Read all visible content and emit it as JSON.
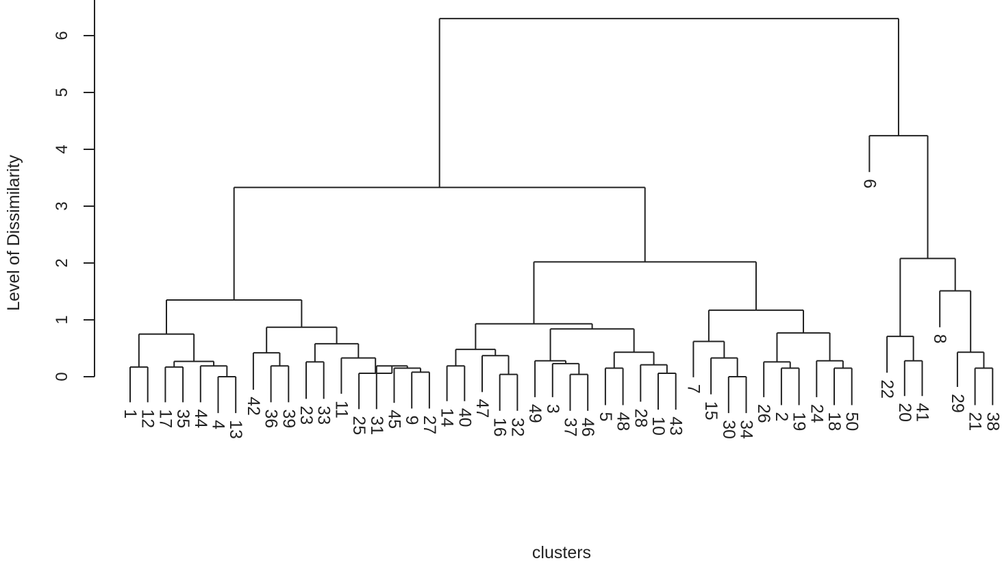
{
  "chart_data": {
    "type": "dendrogram",
    "title": "",
    "xlabel": "clusters",
    "ylabel": "Level of Dissimilarity",
    "ylim": [
      0,
      6.3
    ],
    "yticks": [
      0,
      1,
      2,
      3,
      4,
      5,
      6
    ],
    "grid": false,
    "leaf_order": [
      1,
      12,
      17,
      35,
      44,
      4,
      13,
      42,
      36,
      39,
      23,
      33,
      11,
      25,
      31,
      45,
      9,
      27,
      14,
      40,
      47,
      16,
      32,
      49,
      3,
      37,
      46,
      5,
      48,
      28,
      10,
      43,
      7,
      15,
      30,
      34,
      26,
      2,
      19,
      24,
      18,
      50,
      6,
      22,
      20,
      41,
      8,
      29,
      21,
      38
    ],
    "leaf_heights": {
      "1": -0.45,
      "12": -0.45,
      "17": -0.45,
      "35": -0.45,
      "44": -0.45,
      "4": -0.64,
      "13": -0.64,
      "42": -0.23,
      "36": -0.45,
      "39": -0.45,
      "23": -0.39,
      "33": -0.39,
      "11": -0.3,
      "25": -0.57,
      "31": -0.57,
      "45": -0.46,
      "9": -0.56,
      "27": -0.56,
      "14": -0.43,
      "40": -0.43,
      "47": -0.27,
      "16": -0.6,
      "32": -0.6,
      "49": -0.36,
      "3": -0.36,
      "37": -0.6,
      "46": -0.6,
      "5": -0.5,
      "48": -0.5,
      "28": -0.44,
      "10": -0.58,
      "43": -0.58,
      "7": -0.01,
      "15": -0.31,
      "30": -0.64,
      "34": -0.64,
      "26": -0.36,
      "2": -0.5,
      "19": -0.5,
      "24": -0.36,
      "18": -0.5,
      "50": -0.5,
      "6": 3.6,
      "22": 0.07,
      "20": -0.34,
      "41": -0.34,
      "8": 0.87,
      "29": -0.18,
      "21": -0.5,
      "38": -0.5
    },
    "merges": [
      [
        1,
        12,
        0.17
      ],
      [
        4,
        13,
        0.0
      ],
      [
        17,
        35,
        0.17
      ],
      [
        44,
        "m2",
        0.19
      ],
      [
        "m3",
        "m4",
        0.27
      ],
      [
        "m1",
        "m5",
        0.75
      ],
      [
        36,
        39,
        0.19
      ],
      [
        42,
        "m7",
        0.42
      ],
      [
        23,
        33,
        0.26
      ],
      [
        9,
        27,
        0.08
      ],
      [
        45,
        "m10",
        0.15
      ],
      [
        31,
        "m11",
        0.19
      ],
      [
        25,
        "m12",
        0.06
      ],
      [
        11,
        "m13",
        0.33
      ],
      [
        "m9",
        "m14",
        0.58
      ],
      [
        "m8",
        "m15",
        0.87
      ],
      [
        "m6",
        "m16",
        1.35
      ],
      [
        14,
        40,
        0.19
      ],
      [
        16,
        32,
        0.04
      ],
      [
        47,
        "m19",
        0.37
      ],
      [
        "m18",
        "m20",
        0.48
      ],
      [
        37,
        46,
        0.04
      ],
      [
        3,
        "m22",
        0.23
      ],
      [
        49,
        "m23",
        0.28
      ],
      [
        5,
        48,
        0.15
      ],
      [
        10,
        43,
        0.06
      ],
      [
        28,
        "m26",
        0.21
      ],
      [
        "m25",
        "m27",
        0.43
      ],
      [
        "m24",
        "m28",
        0.84
      ],
      [
        "m21",
        "m29",
        0.93
      ],
      [
        30,
        34,
        0.0
      ],
      [
        15,
        "m31",
        0.33
      ],
      [
        7,
        "m32",
        0.62
      ],
      [
        2,
        19,
        0.15
      ],
      [
        26,
        "m34",
        0.26
      ],
      [
        18,
        50,
        0.15
      ],
      [
        24,
        "m36",
        0.28
      ],
      [
        "m35",
        "m37",
        0.77
      ],
      [
        "m33",
        "m38",
        1.17
      ],
      [
        "m30",
        "m39",
        2.02
      ],
      [
        "m17",
        "m40",
        3.33
      ],
      [
        20,
        41,
        0.28
      ],
      [
        22,
        "m42",
        0.71
      ],
      [
        21,
        38,
        0.15
      ],
      [
        29,
        "m44",
        0.43
      ],
      [
        8,
        "m45",
        1.51
      ],
      [
        "m43",
        "m46",
        2.08
      ],
      [
        6,
        "m47",
        4.24
      ],
      [
        "m41",
        "m48",
        6.3
      ]
    ]
  }
}
